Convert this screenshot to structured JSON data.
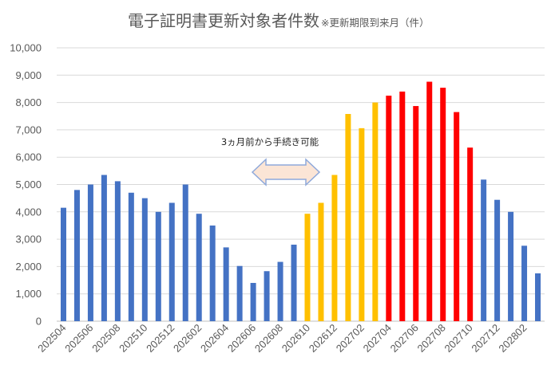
{
  "chart_data": {
    "type": "bar",
    "title": "電子証明書更新対象者件数",
    "subtitle": "※更新期限到来月（件）",
    "xlabel": "",
    "ylabel": "",
    "ylim": [
      0,
      10000
    ],
    "yticks": [
      "0",
      "1,000",
      "2,000",
      "3,000",
      "4,000",
      "5,000",
      "6,000",
      "7,000",
      "8,000",
      "9,000",
      "10,000"
    ],
    "grid": true,
    "legend": "none",
    "categories": [
      "202504",
      "202505",
      "202506",
      "202507",
      "202508",
      "202509",
      "202510",
      "202511",
      "202512",
      "202601",
      "202602",
      "202603",
      "202604",
      "202605",
      "202606",
      "202607",
      "202608",
      "202609",
      "202610",
      "202611",
      "202612",
      "202701",
      "202702",
      "202703",
      "202704",
      "202705",
      "202706",
      "202707",
      "202708",
      "202709",
      "202710",
      "202711",
      "202712",
      "202801",
      "202802",
      "202803"
    ],
    "tick_labels": [
      "202504",
      "202506",
      "202508",
      "202510",
      "202512",
      "202602",
      "202604",
      "202606",
      "202608",
      "202610",
      "202612",
      "202702",
      "202704",
      "202706",
      "202708",
      "202710",
      "202712",
      "202802"
    ],
    "values": [
      4150,
      4800,
      5000,
      5350,
      5120,
      4700,
      4500,
      4000,
      4330,
      5000,
      3930,
      3500,
      2700,
      2020,
      1400,
      1830,
      2170,
      2800,
      3930,
      4330,
      5350,
      7580,
      7060,
      8000,
      8250,
      8400,
      7870,
      8760,
      8540,
      7650,
      6350,
      5180,
      4440,
      4000,
      2760,
      1750
    ],
    "colors": [
      "#4472C4",
      "#4472C4",
      "#4472C4",
      "#4472C4",
      "#4472C4",
      "#4472C4",
      "#4472C4",
      "#4472C4",
      "#4472C4",
      "#4472C4",
      "#4472C4",
      "#4472C4",
      "#4472C4",
      "#4472C4",
      "#4472C4",
      "#4472C4",
      "#4472C4",
      "#4472C4",
      "#FFC000",
      "#FFC000",
      "#FFC000",
      "#FFC000",
      "#FFC000",
      "#FFC000",
      "#FF0000",
      "#FF0000",
      "#FF0000",
      "#FF0000",
      "#FF0000",
      "#FF0000",
      "#FF0000",
      "#4472C4",
      "#4472C4",
      "#4472C4",
      "#4472C4",
      "#4472C4"
    ],
    "annotation": {
      "text": "3ヵ月前から手続き可能",
      "arrow": "double-headed",
      "arrow_fill": "#FBE5D6",
      "arrow_stroke": "#8EA9DB"
    }
  }
}
